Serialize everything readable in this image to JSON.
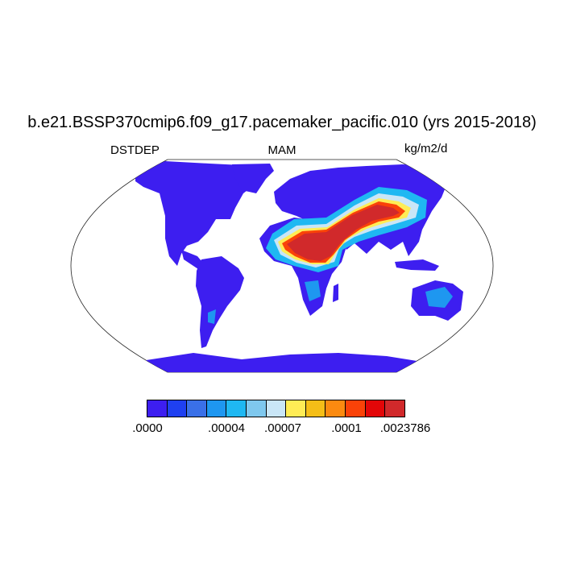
{
  "title": "b.e21.BSSP370cmip6.f09_g17.pacemaker_pacific.010 (yrs 2015-2018)",
  "left_label": "DSTDEP",
  "center_label": "MAM",
  "right_label": "kg/m2/d",
  "colorbar": {
    "colors": [
      "#3d1ef0",
      "#1f40f0",
      "#3a70e8",
      "#1e97f0",
      "#1fb8f2",
      "#7fc8ee",
      "#c9e6f7",
      "#ffec55",
      "#f5be17",
      "#fb8a10",
      "#fa4208",
      "#e30608",
      "#d1292b"
    ],
    "tick_labels": [
      ".0000",
      ".00004",
      ".00007",
      ".0001",
      ".0023786"
    ]
  },
  "map": {
    "projection": "Robinson",
    "ocean_color": "#ffffff",
    "land_low_color": "#3d1ef0",
    "high_deposition_regions": [
      "Sahara",
      "Arabian Peninsula",
      "Central Asia / Taklimakan"
    ]
  }
}
